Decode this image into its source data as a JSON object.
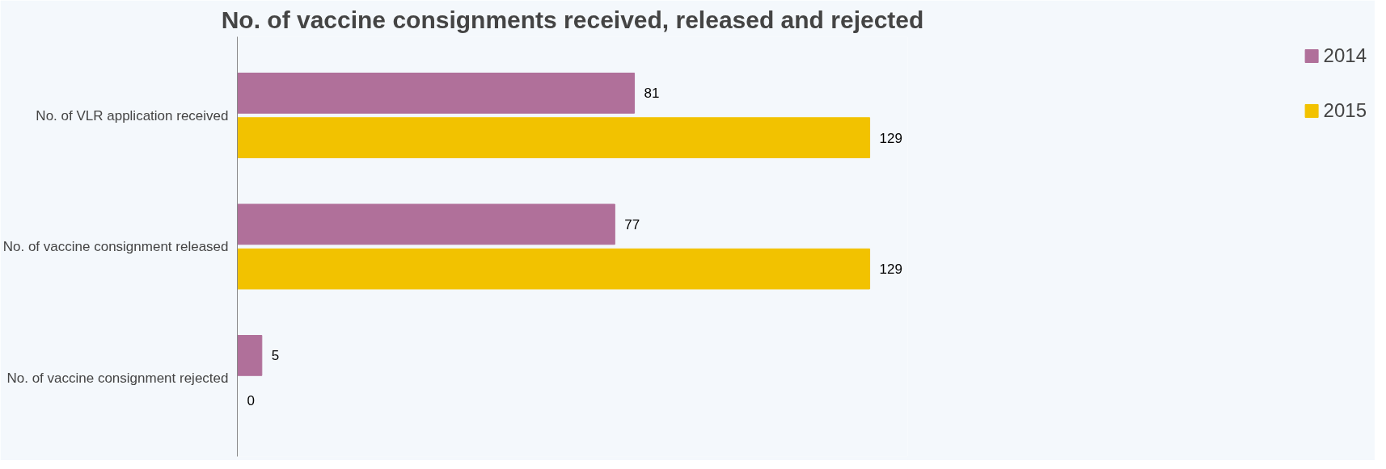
{
  "chart_data": {
    "type": "bar",
    "orientation": "horizontal",
    "title": "No. of vaccine consignments received, released and rejected",
    "categories": [
      "No. of VLR application received",
      "No. of vaccine consignment released",
      "No. of vaccine consignment rejected"
    ],
    "series": [
      {
        "name": "2014",
        "color": "#b0709a",
        "values": [
          81,
          77,
          5
        ]
      },
      {
        "name": "2015",
        "color": "#f2c200",
        "values": [
          129,
          129,
          0
        ]
      }
    ],
    "data_labels": true,
    "grid": false,
    "legend": "right"
  }
}
